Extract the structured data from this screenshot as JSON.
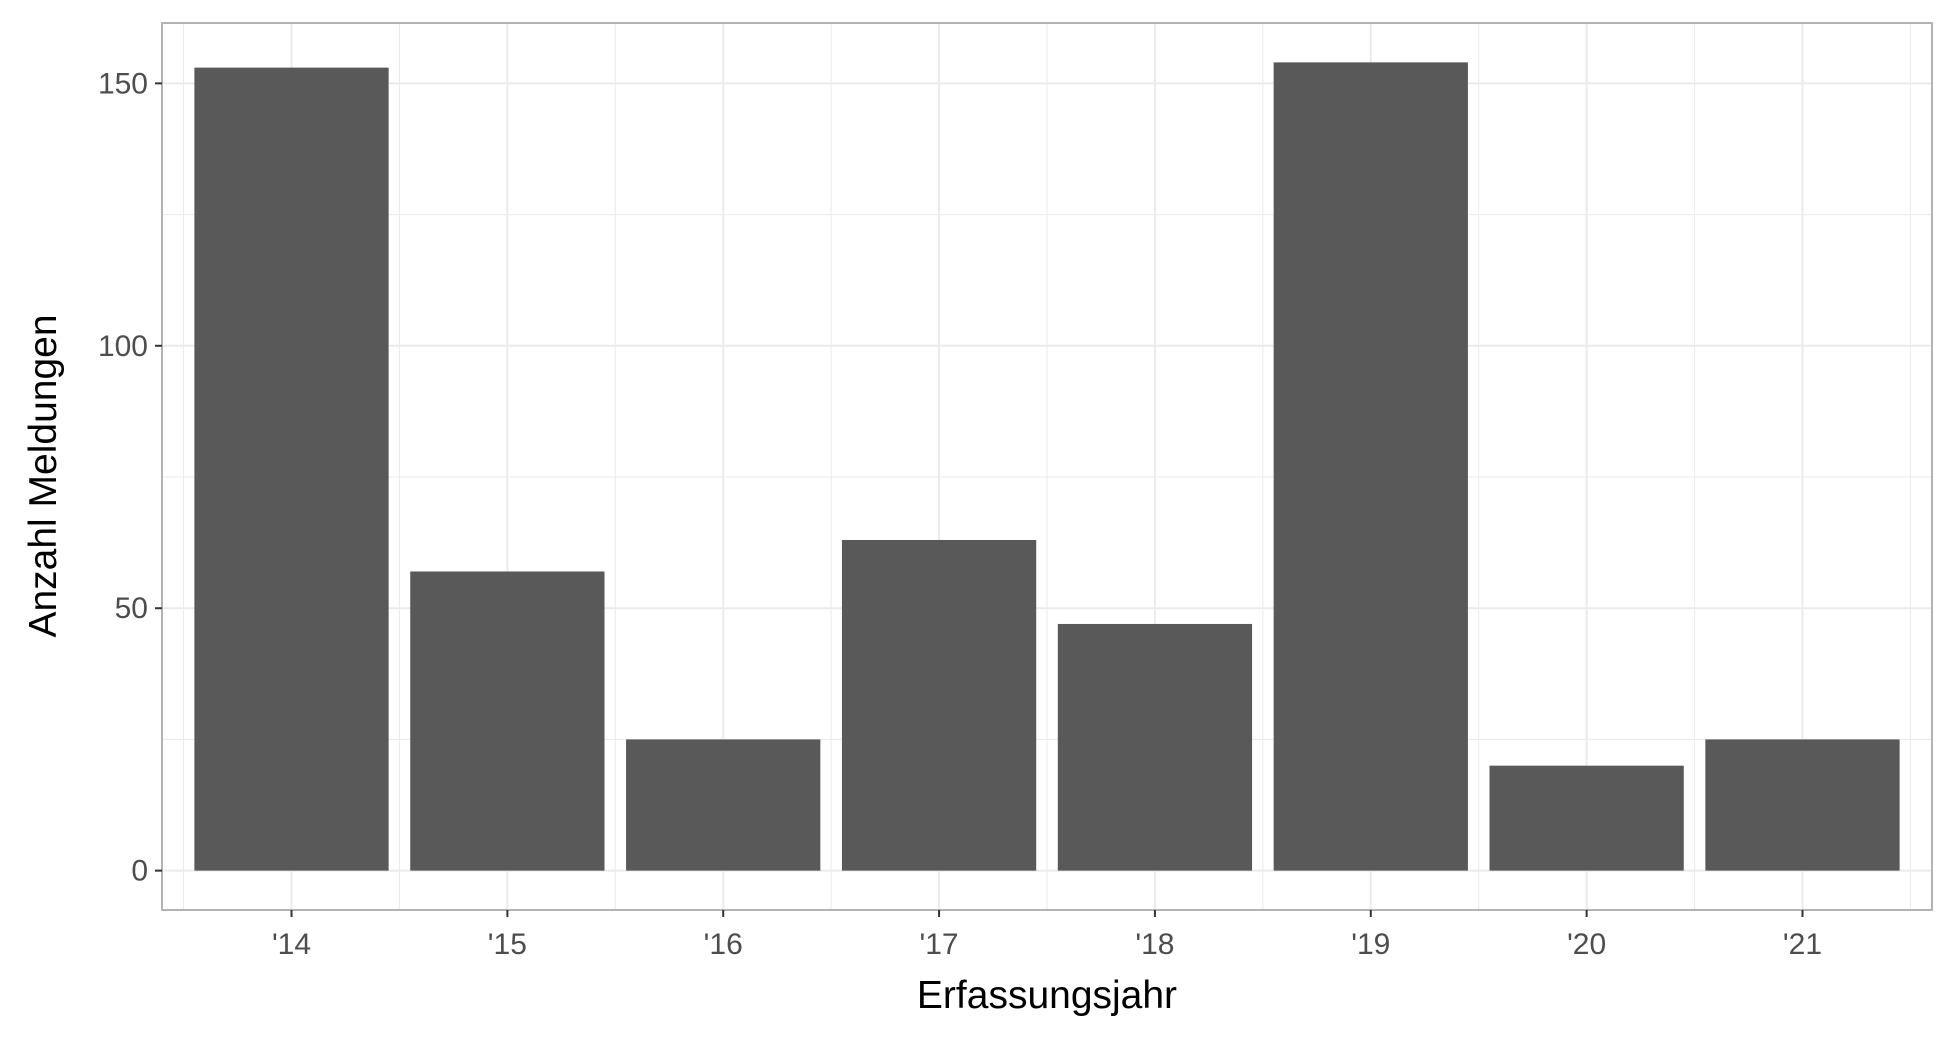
{
  "chart_data": {
    "type": "bar",
    "xlabel": "Erfassungsjahr",
    "ylabel": "Anzahl Meldungen",
    "categories": [
      "'14",
      "'15",
      "'16",
      "'17",
      "'18",
      "'19",
      "'20",
      "'21"
    ],
    "values": [
      153,
      57,
      25,
      63,
      47,
      154,
      20,
      25
    ],
    "ylim": [
      -7.5,
      161.5
    ],
    "yticks": [
      0,
      50,
      100,
      150
    ],
    "grid": true,
    "bar_color": "#595959",
    "grid_color": "#ebebeb",
    "panel_border_color": "#b3b3b3"
  }
}
